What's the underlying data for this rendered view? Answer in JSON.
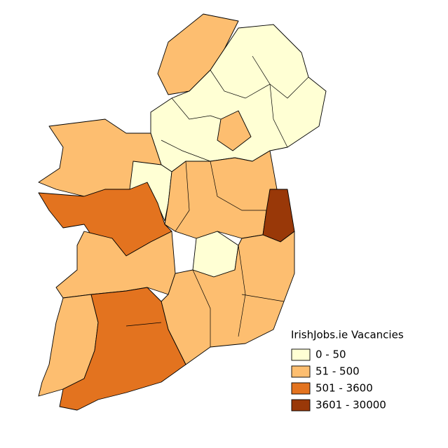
{
  "legend": {
    "title": "IrishJobs.ie Vacancies",
    "items": [
      {
        "label": "0 - 50",
        "color": "#ffffd4"
      },
      {
        "label": "51 - 500",
        "color": "#fdbe70"
      },
      {
        "label": "501 - 3600",
        "color": "#e3731f"
      },
      {
        "label": "3601 - 30000",
        "color": "#993808"
      }
    ]
  }
}
